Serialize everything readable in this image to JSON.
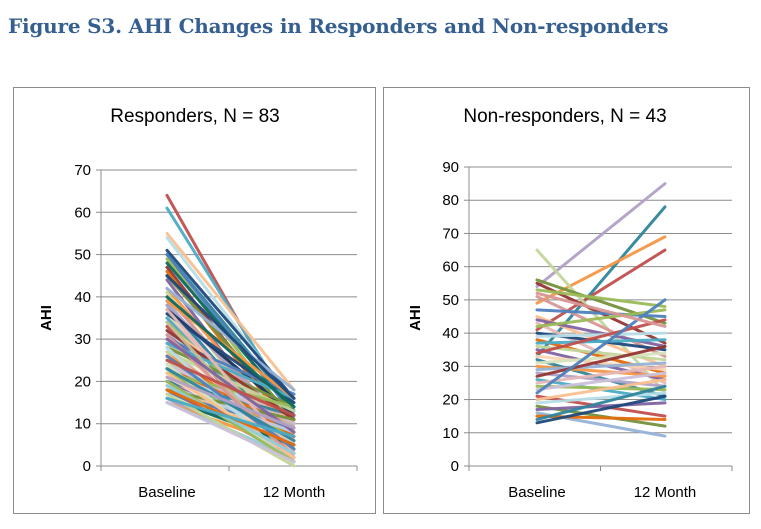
{
  "figure_title": "Figure S3. AHI Changes in Responders and Non-responders",
  "chart_data": [
    {
      "type": "line",
      "title": "Responders, N = 83",
      "xlabel": "",
      "ylabel": "AHI",
      "categories": [
        "Baseline",
        "12 Month"
      ],
      "ylim": [
        0,
        70
      ],
      "yticks": [
        0,
        10,
        20,
        30,
        40,
        50,
        60,
        70
      ],
      "grid": true,
      "series": [
        {
          "values": [
            64,
            11
          ],
          "color": "#c0504d"
        },
        {
          "values": [
            61,
            13
          ],
          "color": "#4bacc6"
        },
        {
          "values": [
            55,
            18
          ],
          "color": "#fac090"
        },
        {
          "values": [
            54,
            15
          ],
          "color": "#b7dee8"
        },
        {
          "values": [
            51,
            16
          ],
          "color": "#1f497d"
        },
        {
          "values": [
            50,
            14
          ],
          "color": "#31859c"
        },
        {
          "values": [
            50,
            12
          ],
          "color": "#4f81bd"
        },
        {
          "values": [
            49,
            10
          ],
          "color": "#9bbb59"
        },
        {
          "values": [
            48,
            13
          ],
          "color": "#0f6b5f"
        },
        {
          "values": [
            47,
            9
          ],
          "color": "#943634"
        },
        {
          "values": [
            46,
            8
          ],
          "color": "#e46c0a"
        },
        {
          "values": [
            45,
            11
          ],
          "color": "#76923c"
        },
        {
          "values": [
            44,
            5
          ],
          "color": "#8064a2"
        },
        {
          "values": [
            42,
            7
          ],
          "color": "#f79646"
        },
        {
          "values": [
            41,
            3
          ],
          "color": "#c3d69b"
        },
        {
          "values": [
            40,
            6
          ],
          "color": "#d99694"
        },
        {
          "values": [
            39,
            2
          ],
          "color": "#95b3d7"
        },
        {
          "values": [
            38,
            4
          ],
          "color": "#31859c"
        },
        {
          "values": [
            38,
            9
          ],
          "color": "#b2a2c7"
        },
        {
          "values": [
            37,
            12
          ],
          "color": "#17375e"
        },
        {
          "values": [
            36,
            1
          ],
          "color": "#d7e4bd"
        },
        {
          "values": [
            35,
            8
          ],
          "color": "#e6b9b8"
        },
        {
          "values": [
            35,
            3
          ],
          "color": "#4bacc6"
        },
        {
          "values": [
            34,
            6
          ],
          "color": "#9bbb59"
        },
        {
          "values": [
            33,
            10
          ],
          "color": "#fac090"
        },
        {
          "values": [
            33,
            2
          ],
          "color": "#c0504d"
        },
        {
          "values": [
            32,
            5
          ],
          "color": "#b7dee8"
        },
        {
          "values": [
            31,
            7
          ],
          "color": "#8064a2"
        },
        {
          "values": [
            30,
            17
          ],
          "color": "#4f81bd"
        },
        {
          "values": [
            30,
            3
          ],
          "color": "#fbd5b5"
        },
        {
          "values": [
            29,
            9
          ],
          "color": "#c4bd97"
        },
        {
          "values": [
            28,
            4
          ],
          "color": "#ccc1da"
        },
        {
          "values": [
            28,
            14
          ],
          "color": "#76923c"
        },
        {
          "values": [
            27,
            6
          ],
          "color": "#f79646"
        },
        {
          "values": [
            26,
            1
          ],
          "color": "#93cddd"
        },
        {
          "values": [
            25,
            8
          ],
          "color": "#d99694"
        },
        {
          "values": [
            25,
            2
          ],
          "color": "#c3d69b"
        },
        {
          "values": [
            24,
            5
          ],
          "color": "#b9cde5"
        },
        {
          "values": [
            23,
            10
          ],
          "color": "#e46c0a"
        },
        {
          "values": [
            23,
            3
          ],
          "color": "#4bacc6"
        },
        {
          "values": [
            22,
            7
          ],
          "color": "#9bbb59"
        },
        {
          "values": [
            21,
            1
          ],
          "color": "#e6b9b8"
        },
        {
          "values": [
            20,
            4
          ],
          "color": "#8064a2"
        },
        {
          "values": [
            20,
            12
          ],
          "color": "#31859c"
        },
        {
          "values": [
            19,
            6
          ],
          "color": "#fac090"
        },
        {
          "values": [
            18,
            2
          ],
          "color": "#c0504d"
        },
        {
          "values": [
            17,
            9
          ],
          "color": "#4f81bd"
        },
        {
          "values": [
            17,
            3
          ],
          "color": "#d7e4bd"
        },
        {
          "values": [
            16,
            5
          ],
          "color": "#0f6b5f"
        },
        {
          "values": [
            16,
            1
          ],
          "color": "#b2a2c7"
        },
        {
          "values": [
            15,
            4
          ],
          "color": "#f79646"
        },
        {
          "values": [
            15,
            2
          ],
          "color": "#93cddd"
        },
        {
          "values": [
            36,
            15
          ],
          "color": "#1f497d"
        },
        {
          "values": [
            32,
            11
          ],
          "color": "#943634"
        },
        {
          "values": [
            29,
            16
          ],
          "color": "#4bacc6"
        },
        {
          "values": [
            27,
            13
          ],
          "color": "#c3d69b"
        },
        {
          "values": [
            26,
            7
          ],
          "color": "#e46c0a"
        },
        {
          "values": [
            24,
            10
          ],
          "color": "#ccc1da"
        },
        {
          "values": [
            22,
            14
          ],
          "color": "#9bbb59"
        },
        {
          "values": [
            21,
            6
          ],
          "color": "#fbd5b5"
        },
        {
          "values": [
            19,
            8
          ],
          "color": "#b9cde5"
        },
        {
          "values": [
            18,
            11
          ],
          "color": "#76923c"
        },
        {
          "values": [
            42,
            18
          ],
          "color": "#95b3d7"
        },
        {
          "values": [
            39,
            16
          ],
          "color": "#f79646"
        },
        {
          "values": [
            37,
            3
          ],
          "color": "#e6b9b8"
        },
        {
          "values": [
            34,
            1
          ],
          "color": "#c4bd97"
        },
        {
          "values": [
            31,
            2
          ],
          "color": "#d99694"
        },
        {
          "values": [
            30,
            8
          ],
          "color": "#8064a2"
        },
        {
          "values": [
            28,
            0
          ],
          "color": "#b7dee8"
        },
        {
          "values": [
            26,
            4
          ],
          "color": "#4f81bd"
        },
        {
          "values": [
            25,
            12
          ],
          "color": "#c0504d"
        },
        {
          "values": [
            24,
            0
          ],
          "color": "#d7e4bd"
        },
        {
          "values": [
            23,
            6
          ],
          "color": "#31859c"
        },
        {
          "values": [
            22,
            2
          ],
          "color": "#fac090"
        },
        {
          "values": [
            21,
            9
          ],
          "color": "#b2a2c7"
        },
        {
          "values": [
            20,
            1
          ],
          "color": "#9bbb59"
        },
        {
          "values": [
            19,
            3
          ],
          "color": "#93cddd"
        },
        {
          "values": [
            18,
            5
          ],
          "color": "#e46c0a"
        },
        {
          "values": [
            17,
            0
          ],
          "color": "#c3d69b"
        },
        {
          "values": [
            16,
            7
          ],
          "color": "#4bacc6"
        },
        {
          "values": [
            15,
            1
          ],
          "color": "#ccc1da"
        },
        {
          "values": [
            40,
            14
          ],
          "color": "#0f6b5f"
        },
        {
          "values": [
            45,
            16
          ],
          "color": "#1f497d"
        }
      ]
    },
    {
      "type": "line",
      "title": "Non-responders,  N = 43",
      "xlabel": "",
      "ylabel": "AHI",
      "categories": [
        "Baseline",
        "12 Month"
      ],
      "ylim": [
        0,
        90
      ],
      "yticks": [
        0,
        10,
        20,
        30,
        40,
        50,
        60,
        70,
        80,
        90
      ],
      "grid": true,
      "series": [
        {
          "values": [
            54,
            85
          ],
          "color": "#b2a2c7"
        },
        {
          "values": [
            33,
            78
          ],
          "color": "#31859c"
        },
        {
          "values": [
            49,
            69
          ],
          "color": "#f79646"
        },
        {
          "values": [
            41,
            65
          ],
          "color": "#c0504d"
        },
        {
          "values": [
            65,
            22
          ],
          "color": "#c3d69b"
        },
        {
          "values": [
            56,
            43
          ],
          "color": "#76923c"
        },
        {
          "values": [
            55,
            37
          ],
          "color": "#943634"
        },
        {
          "values": [
            53,
            48
          ],
          "color": "#9bbb59"
        },
        {
          "values": [
            51,
            33
          ],
          "color": "#d99694"
        },
        {
          "values": [
            47,
            45
          ],
          "color": "#4f81bd"
        },
        {
          "values": [
            45,
            30
          ],
          "color": "#fac090"
        },
        {
          "values": [
            44,
            36
          ],
          "color": "#8064a2"
        },
        {
          "values": [
            43,
            25
          ],
          "color": "#e6b9b8"
        },
        {
          "values": [
            42,
            47
          ],
          "color": "#9bbb59"
        },
        {
          "values": [
            40,
            35
          ],
          "color": "#1f497d"
        },
        {
          "values": [
            39,
            40
          ],
          "color": "#b7dee8"
        },
        {
          "values": [
            38,
            28
          ],
          "color": "#e46c0a"
        },
        {
          "values": [
            37,
            38
          ],
          "color": "#4bacc6"
        },
        {
          "values": [
            36,
            32
          ],
          "color": "#c3d69b"
        },
        {
          "values": [
            35,
            26
          ],
          "color": "#8064a2"
        },
        {
          "values": [
            34,
            44
          ],
          "color": "#c0504d"
        },
        {
          "values": [
            33,
            29
          ],
          "color": "#fbd5b5"
        },
        {
          "values": [
            32,
            21
          ],
          "color": "#31859c"
        },
        {
          "values": [
            31,
            34
          ],
          "color": "#d7e4bd"
        },
        {
          "values": [
            30,
            27
          ],
          "color": "#f79646"
        },
        {
          "values": [
            29,
            31
          ],
          "color": "#95b3d7"
        },
        {
          "values": [
            28,
            24
          ],
          "color": "#b2a2c7"
        },
        {
          "values": [
            27,
            36
          ],
          "color": "#943634"
        },
        {
          "values": [
            26,
            20
          ],
          "color": "#4bacc6"
        },
        {
          "values": [
            25,
            30
          ],
          "color": "#e6b9b8"
        },
        {
          "values": [
            24,
            23
          ],
          "color": "#9bbb59"
        },
        {
          "values": [
            23,
            28
          ],
          "color": "#ccc1da"
        },
        {
          "values": [
            22,
            50
          ],
          "color": "#4f81bd"
        },
        {
          "values": [
            21,
            15
          ],
          "color": "#c0504d"
        },
        {
          "values": [
            20,
            26
          ],
          "color": "#fac090"
        },
        {
          "values": [
            19,
            22
          ],
          "color": "#b7dee8"
        },
        {
          "values": [
            18,
            12
          ],
          "color": "#76923c"
        },
        {
          "values": [
            17,
            19
          ],
          "color": "#8064a2"
        },
        {
          "values": [
            16,
            9
          ],
          "color": "#95b3d7"
        },
        {
          "values": [
            15,
            14
          ],
          "color": "#e46c0a"
        },
        {
          "values": [
            14,
            24
          ],
          "color": "#31859c"
        },
        {
          "values": [
            13,
            21
          ],
          "color": "#1f497d"
        },
        {
          "values": [
            52,
            42
          ],
          "color": "#d99694"
        }
      ]
    }
  ]
}
